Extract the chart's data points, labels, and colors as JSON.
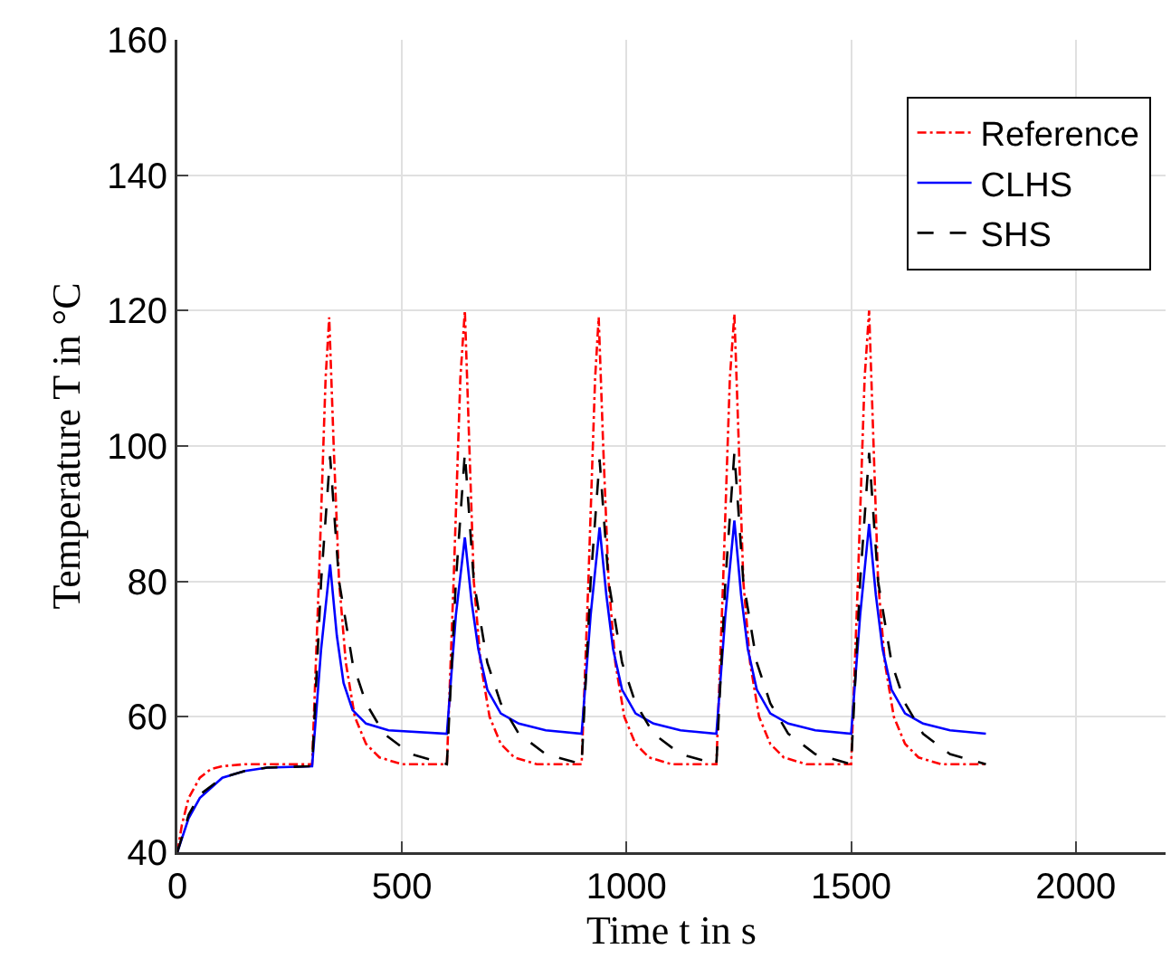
{
  "chart_data": {
    "type": "line",
    "xlabel": "Time t in s",
    "ylabel": "Temperature T in °C",
    "xlim": [
      0,
      2200
    ],
    "xticks": [
      0,
      500,
      1000,
      1500,
      2000
    ],
    "ylim": [
      40,
      160
    ],
    "yticks": [
      40,
      60,
      80,
      100,
      120,
      140,
      160
    ],
    "grid": true,
    "legend": "top right",
    "series": [
      {
        "name": "Reference",
        "color": "#ff0000",
        "line_style": "dashdot",
        "x": [
          0,
          10,
          25,
          50,
          75,
          100,
          150,
          300,
          315,
          330,
          338,
          348,
          360,
          375,
          395,
          420,
          450,
          500,
          600,
          615,
          630,
          640,
          650,
          660,
          675,
          695,
          720,
          750,
          800,
          900,
          915,
          930,
          938,
          948,
          960,
          975,
          995,
          1020,
          1050,
          1100,
          1200,
          1215,
          1230,
          1240,
          1250,
          1260,
          1275,
          1295,
          1320,
          1350,
          1400,
          1500,
          1515,
          1530,
          1540,
          1550,
          1560,
          1575,
          1595,
          1620,
          1650,
          1700,
          1800
        ],
        "values": [
          40,
          44,
          48,
          51,
          52.3,
          52.7,
          53,
          53,
          80,
          110,
          119,
          100,
          80,
          68,
          60,
          56,
          54,
          53,
          53,
          80,
          110,
          120,
          100,
          80,
          68,
          60,
          56,
          54,
          53,
          53,
          80,
          110,
          119,
          100,
          80,
          68,
          60,
          56,
          54,
          53,
          53,
          80,
          110,
          119.5,
          100,
          80,
          68,
          60,
          56,
          54,
          53,
          53,
          80,
          110,
          120,
          100,
          80,
          68,
          60,
          56,
          54,
          53,
          53
        ]
      },
      {
        "name": "CLHS",
        "color": "#0000ff",
        "line_style": "solid",
        "x": [
          0,
          25,
          50,
          100,
          150,
          200,
          300,
          320,
          340,
          355,
          370,
          390,
          420,
          470,
          600,
          620,
          640,
          655,
          670,
          690,
          720,
          760,
          820,
          900,
          920,
          940,
          955,
          970,
          990,
          1020,
          1060,
          1120,
          1200,
          1220,
          1240,
          1255,
          1270,
          1290,
          1320,
          1360,
          1420,
          1500,
          1520,
          1540,
          1555,
          1570,
          1590,
          1620,
          1660,
          1720,
          1800
        ],
        "values": [
          40,
          45,
          48,
          51,
          52,
          52.5,
          52.7,
          70,
          82.5,
          72,
          65,
          61,
          59,
          58,
          57.5,
          75,
          86.5,
          77,
          70,
          64,
          60.5,
          59,
          58,
          57.5,
          75,
          88,
          78,
          70,
          64,
          60.5,
          59,
          58,
          57.5,
          75,
          89,
          78,
          70,
          64,
          60.5,
          59,
          58,
          57.5,
          75,
          88.5,
          78,
          70,
          64,
          60.5,
          59,
          58,
          57.5
        ]
      },
      {
        "name": "SHS",
        "color": "#000000",
        "line_style": "dashed",
        "x": [
          0,
          25,
          50,
          100,
          150,
          200,
          300,
          320,
          340,
          360,
          390,
          420,
          460,
          520,
          600,
          620,
          640,
          660,
          690,
          720,
          760,
          820,
          900,
          920,
          940,
          960,
          990,
          1020,
          1060,
          1120,
          1200,
          1220,
          1240,
          1260,
          1290,
          1320,
          1360,
          1420,
          1500,
          1520,
          1540,
          1560,
          1590,
          1620,
          1660,
          1720,
          1800
        ],
        "values": [
          40,
          45.5,
          48.5,
          51,
          52,
          52.5,
          52.7,
          80,
          98.5,
          80,
          68,
          62,
          57.5,
          54.5,
          53,
          80,
          99,
          80,
          68,
          62,
          57.5,
          54.5,
          53,
          80,
          98,
          80,
          68,
          62,
          57.5,
          54.5,
          53,
          80,
          99,
          80,
          68,
          62,
          57.5,
          54.5,
          53,
          80,
          99,
          80,
          68,
          62,
          57.5,
          54.5,
          53
        ]
      }
    ]
  }
}
